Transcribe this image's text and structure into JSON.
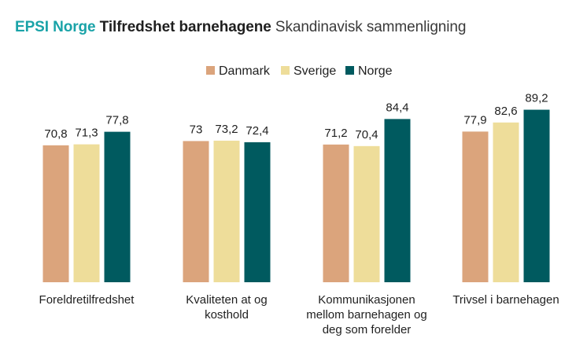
{
  "title": {
    "brand": "EPSI Norge",
    "main": "Tilfredshet barnehagene",
    "subtitle": "Skandinavisk sammenligning"
  },
  "colors": {
    "brand": "#1aa3a8",
    "Danmark": "#dba47c",
    "Sverige": "#eedd9a",
    "Norge": "#005a5f"
  },
  "chart_data": {
    "type": "bar",
    "legend_position": "top-center",
    "grid": false,
    "ylim": [
      0,
      95
    ],
    "categories": [
      [
        "Foreldretilfredshet"
      ],
      [
        "Kvaliteten at og",
        "kosthold"
      ],
      [
        "Kommunikasjonen",
        "mellom barnehagen og",
        "deg som forelder"
      ],
      [
        "Trivsel i barnehagen"
      ]
    ],
    "series": [
      {
        "name": "Danmark",
        "values": [
          70.8,
          73,
          71.2,
          77.9
        ],
        "labels": [
          "70,8",
          "73",
          "71,2",
          "77,9"
        ]
      },
      {
        "name": "Sverige",
        "values": [
          71.3,
          73.2,
          70.4,
          82.6
        ],
        "labels": [
          "71,3",
          "73,2",
          "70,4",
          "82,6"
        ]
      },
      {
        "name": "Norge",
        "values": [
          77.8,
          72.4,
          84.4,
          89.2
        ],
        "labels": [
          "77,8",
          "72,4",
          "84,4",
          "89,2"
        ]
      }
    ]
  }
}
